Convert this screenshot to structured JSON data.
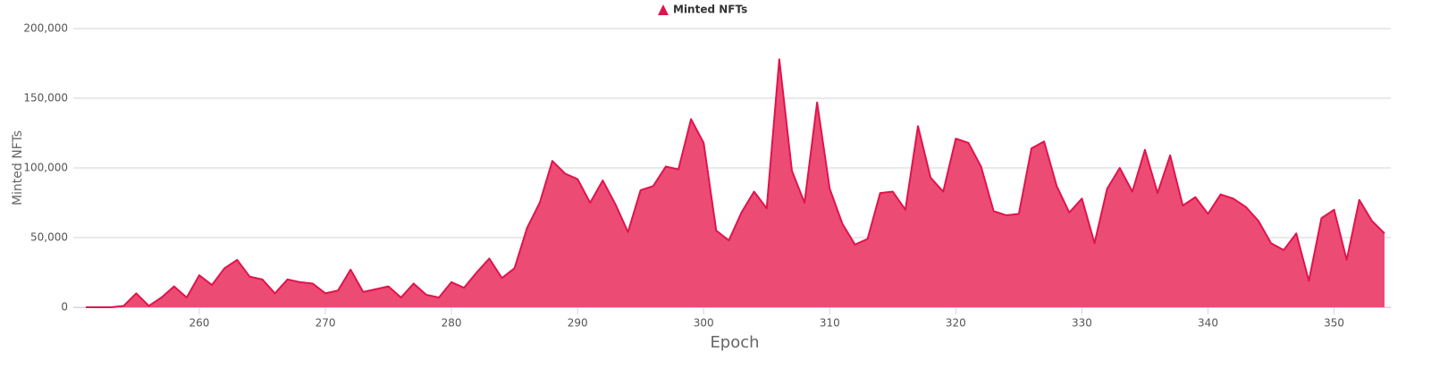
{
  "chart_data": {
    "type": "area",
    "legend": "top",
    "x_label": "Epoch",
    "y_label": "Minted NFTs",
    "x": [
      251,
      252,
      253,
      254,
      255,
      256,
      257,
      258,
      259,
      260,
      261,
      262,
      263,
      264,
      265,
      266,
      267,
      268,
      269,
      270,
      271,
      272,
      273,
      274,
      275,
      276,
      277,
      278,
      279,
      280,
      281,
      282,
      283,
      284,
      285,
      286,
      287,
      288,
      289,
      290,
      291,
      292,
      293,
      294,
      295,
      296,
      297,
      298,
      299,
      300,
      301,
      302,
      303,
      304,
      305,
      306,
      307,
      308,
      309,
      310,
      311,
      312,
      313,
      314,
      315,
      316,
      317,
      318,
      319,
      320,
      321,
      322,
      323,
      324,
      325,
      326,
      327,
      328,
      329,
      330,
      331,
      332,
      333,
      334,
      335,
      336,
      337,
      338,
      339,
      340,
      341,
      342,
      343,
      344,
      345,
      346,
      347,
      348,
      349,
      350,
      351,
      352,
      353,
      354
    ],
    "series": [
      {
        "name": "Minted NFTs",
        "color": "#e0144c",
        "fill": "#ec4b74",
        "values": [
          0,
          0,
          0,
          1000,
          10000,
          1000,
          7000,
          15000,
          7000,
          23000,
          16000,
          28000,
          34000,
          22000,
          20000,
          10000,
          20000,
          18000,
          17000,
          10000,
          12000,
          27000,
          11000,
          13000,
          15000,
          7000,
          17000,
          9000,
          7000,
          18000,
          14000,
          25000,
          35000,
          21000,
          28000,
          57000,
          75000,
          105000,
          96000,
          92000,
          75000,
          91000,
          74000,
          54000,
          84000,
          87000,
          101000,
          99000,
          135000,
          118000,
          55000,
          48000,
          68000,
          83000,
          71000,
          178000,
          98000,
          75000,
          147000,
          85000,
          60000,
          45000,
          49000,
          82000,
          83000,
          70000,
          130000,
          93000,
          83000,
          121000,
          118000,
          101000,
          69000,
          66000,
          67000,
          114000,
          119000,
          87000,
          68000,
          78000,
          46000,
          85000,
          100000,
          83000,
          113000,
          82000,
          109000,
          73000,
          79000,
          67000,
          81000,
          78000,
          72000,
          62000,
          46000,
          41000,
          53000,
          19000,
          64000,
          70000,
          34000,
          77000,
          62000,
          53000
        ]
      }
    ],
    "xlim": [
      251,
      354
    ],
    "xticks": [
      260,
      270,
      280,
      290,
      300,
      310,
      320,
      330,
      340,
      350
    ],
    "ylim": [
      0,
      200000
    ],
    "yticks": [
      0,
      {
        "value": 50000,
        "label": "50,000"
      },
      {
        "value": 100000,
        "label": "100,000"
      },
      {
        "value": 150000,
        "label": "150,000"
      },
      {
        "value": 200000,
        "label": "200,000"
      }
    ],
    "grid": true
  }
}
